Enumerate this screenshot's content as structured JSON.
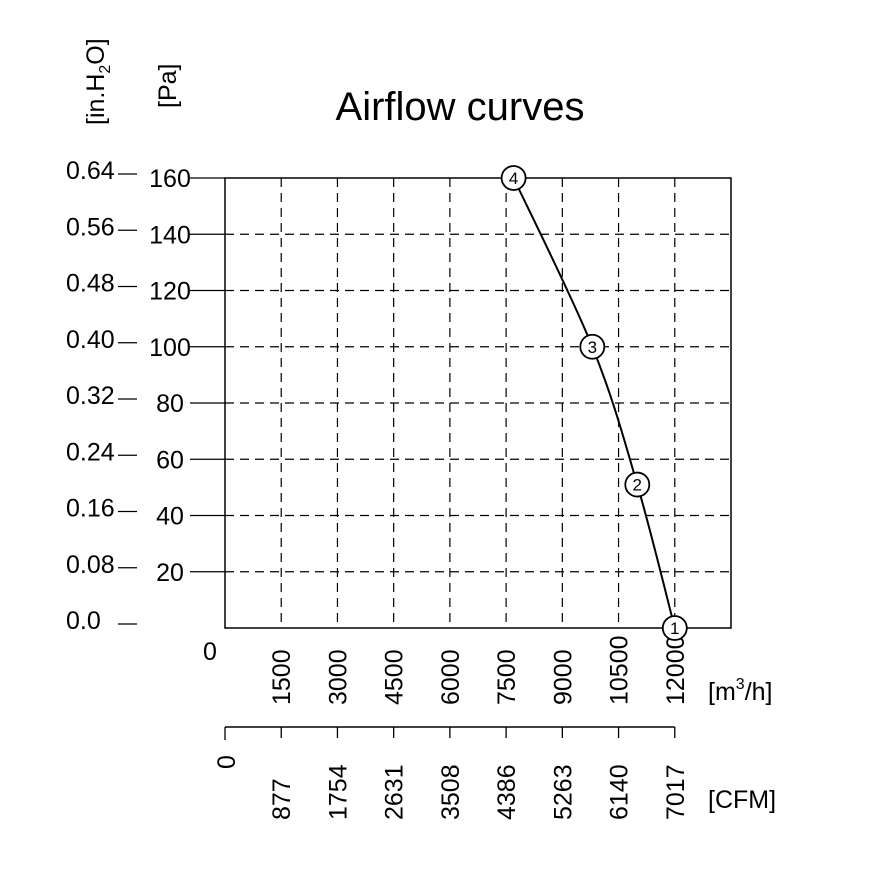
{
  "chart_data": {
    "type": "line",
    "title": "Airflow curves",
    "y_axis_primary": {
      "unit_label": "[Pa]",
      "ticks": [
        "20",
        "40",
        "60",
        "80",
        "100",
        "120",
        "140",
        "160"
      ],
      "tick_values": [
        20,
        40,
        60,
        80,
        100,
        120,
        140,
        160
      ],
      "ylim": [
        0,
        160
      ]
    },
    "y_axis_secondary": {
      "unit_label_parts": [
        "[in.H",
        "2",
        "O]"
      ],
      "ticks": [
        "0.0",
        "0.08",
        "0.16",
        "0.24",
        "0.32",
        "0.40",
        "0.48",
        "0.56",
        "0.64"
      ],
      "tick_values": [
        0.0,
        0.08,
        0.16,
        0.24,
        0.32,
        0.4,
        0.48,
        0.56,
        0.64
      ]
    },
    "x_axis_primary": {
      "unit_label_parts": [
        "[m",
        "3",
        "/h]"
      ],
      "zero_label": "0",
      "ticks": [
        "1500",
        "3000",
        "4500",
        "6000",
        "7500",
        "9000",
        "10500",
        "12000"
      ],
      "tick_values": [
        1500,
        3000,
        4500,
        6000,
        7500,
        9000,
        10500,
        12000
      ],
      "xlim": [
        0,
        13500
      ]
    },
    "x_axis_secondary": {
      "unit_label": "[CFM]",
      "zero_label": "0",
      "ticks": [
        "877",
        "1754",
        "2631",
        "3508",
        "4386",
        "5263",
        "6140",
        "7017"
      ]
    },
    "grid": true,
    "series": [
      {
        "points": [
          {
            "label": "1",
            "x": 12000,
            "y": 0
          },
          {
            "label": "2",
            "x": 11000,
            "y": 51
          },
          {
            "label": "3",
            "x": 9800,
            "y": 100
          },
          {
            "label": "4",
            "x": 7700,
            "y": 160
          }
        ],
        "color": "#000000"
      }
    ]
  }
}
